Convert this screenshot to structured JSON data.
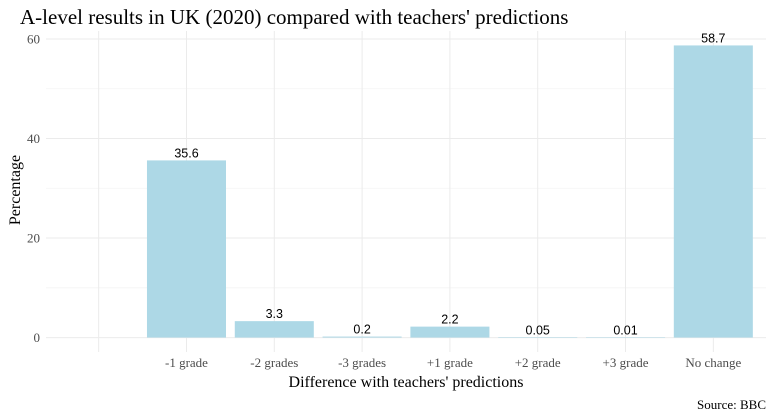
{
  "chart_data": {
    "type": "bar",
    "title": "A-level results in UK (2020) compared with teachers' predictions",
    "xlabel": "Difference with teachers' predictions",
    "ylabel": "Percentage",
    "caption": "Source: BBC",
    "categories": [
      "-1 grade",
      "-2 grades",
      "-3 grades",
      "+1 grade",
      "+2 grade",
      "+3 grade",
      "No change"
    ],
    "values": [
      35.6,
      3.3,
      0.2,
      2.2,
      0.05,
      0.01,
      58.7
    ],
    "data_labels": [
      "35.6",
      "3.3",
      "0.2",
      "2.2",
      "0.05",
      "0.01",
      "58.7"
    ],
    "yticks": [
      0,
      20,
      40,
      60
    ],
    "ylim": [
      -2.9,
      61.6
    ],
    "grid": true,
    "legend": "none",
    "bar_color": "#add8e6"
  }
}
